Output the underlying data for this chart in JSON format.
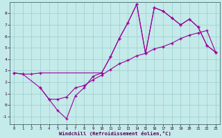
{
  "xlabel": "Windchill (Refroidissement éolien,°C)",
  "bg_color": "#c5eaea",
  "line_color": "#990099",
  "grid_color": "#99cccc",
  "xlim": [
    -0.5,
    23.5
  ],
  "ylim": [
    -1.7,
    9.0
  ],
  "xticks": [
    0,
    1,
    2,
    3,
    4,
    5,
    6,
    7,
    8,
    9,
    10,
    11,
    12,
    13,
    14,
    15,
    16,
    17,
    18,
    19,
    20,
    21,
    22,
    23
  ],
  "yticks": [
    -1,
    0,
    1,
    2,
    3,
    4,
    5,
    6,
    7,
    8
  ],
  "line1": {
    "x": [
      0,
      1,
      2,
      3,
      10,
      11,
      12,
      13,
      14,
      15,
      16,
      17,
      18,
      19,
      20,
      21,
      22,
      23
    ],
    "y": [
      2.8,
      2.7,
      2.7,
      2.8,
      2.8,
      4.2,
      5.8,
      7.2,
      8.8,
      4.5,
      8.5,
      8.2,
      7.6,
      7.0,
      7.5,
      6.8,
      5.2,
      4.6
    ]
  },
  "line2": {
    "x": [
      3,
      4,
      5,
      6,
      7,
      8,
      9,
      10,
      11,
      12,
      13,
      14,
      15,
      16,
      17,
      18,
      19,
      20,
      21,
      22,
      23
    ],
    "y": [
      1.5,
      0.5,
      -0.5,
      -1.2,
      0.8,
      1.5,
      2.5,
      2.8,
      4.2,
      5.8,
      7.2,
      8.8,
      4.5,
      8.5,
      8.2,
      7.6,
      7.0,
      7.5,
      6.8,
      5.2,
      4.6
    ]
  },
  "line3": {
    "x": [
      0,
      1,
      3,
      4,
      5,
      6,
      7,
      8,
      9,
      10,
      11,
      12,
      13,
      14,
      15,
      16,
      17,
      18,
      19,
      20,
      21,
      22,
      23
    ],
    "y": [
      2.8,
      2.7,
      1.5,
      0.5,
      0.5,
      0.7,
      1.5,
      1.7,
      2.2,
      2.6,
      3.1,
      3.6,
      3.9,
      4.3,
      4.5,
      4.9,
      5.1,
      5.4,
      5.8,
      6.1,
      6.3,
      6.5,
      4.6
    ]
  }
}
